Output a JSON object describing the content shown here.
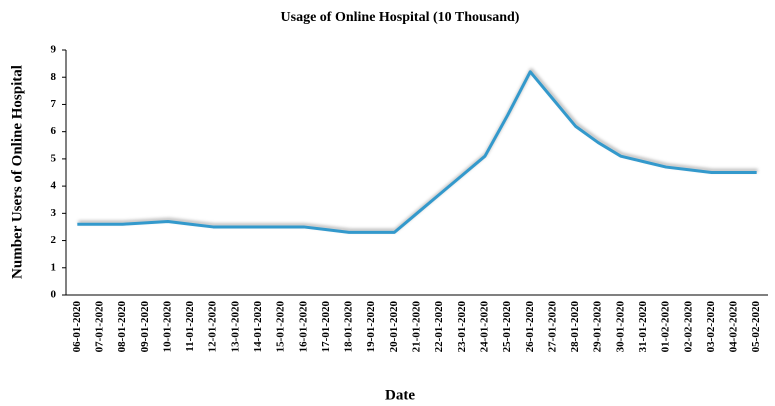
{
  "chart_data": {
    "type": "line",
    "title": "Usage of Online Hospital (10 Thousand)",
    "x_label": "Date",
    "y_label": "Number Users of Online Hospital",
    "categories": [
      "06-01-2020",
      "07-01-2020",
      "08-01-2020",
      "09-01-2020",
      "10-01-2020",
      "11-01-2020",
      "12-01-2020",
      "13-01-2020",
      "14-01-2020",
      "15-01-2020",
      "16-01-2020",
      "17-01-2020",
      "18-01-2020",
      "19-01-2020",
      "20-01-2020",
      "21-01-2020",
      "22-01-2020",
      "23-01-2020",
      "24-01-2020",
      "25-01-2020",
      "26-01-2020",
      "27-01-2020",
      "28-01-2020",
      "29-01-2020",
      "30-01-2020",
      "31-01-2020",
      "01-02-2020",
      "02-02-2020",
      "03-02-2020",
      "04-02-2020",
      "05-02-2020"
    ],
    "values": [
      2.6,
      2.6,
      2.6,
      2.65,
      2.7,
      2.6,
      2.5,
      2.5,
      2.5,
      2.5,
      2.5,
      2.4,
      2.3,
      2.3,
      2.3,
      3.0,
      3.7,
      4.4,
      5.1,
      6.6,
      8.2,
      7.2,
      6.2,
      5.6,
      5.1,
      4.9,
      4.7,
      4.6,
      4.5,
      4.5,
      4.5
    ],
    "color": "#3399cc",
    "ylim": [
      0,
      9
    ],
    "yticks": [
      0,
      1,
      2,
      3,
      4,
      5,
      6,
      7,
      8,
      9
    ],
    "grid": false
  }
}
